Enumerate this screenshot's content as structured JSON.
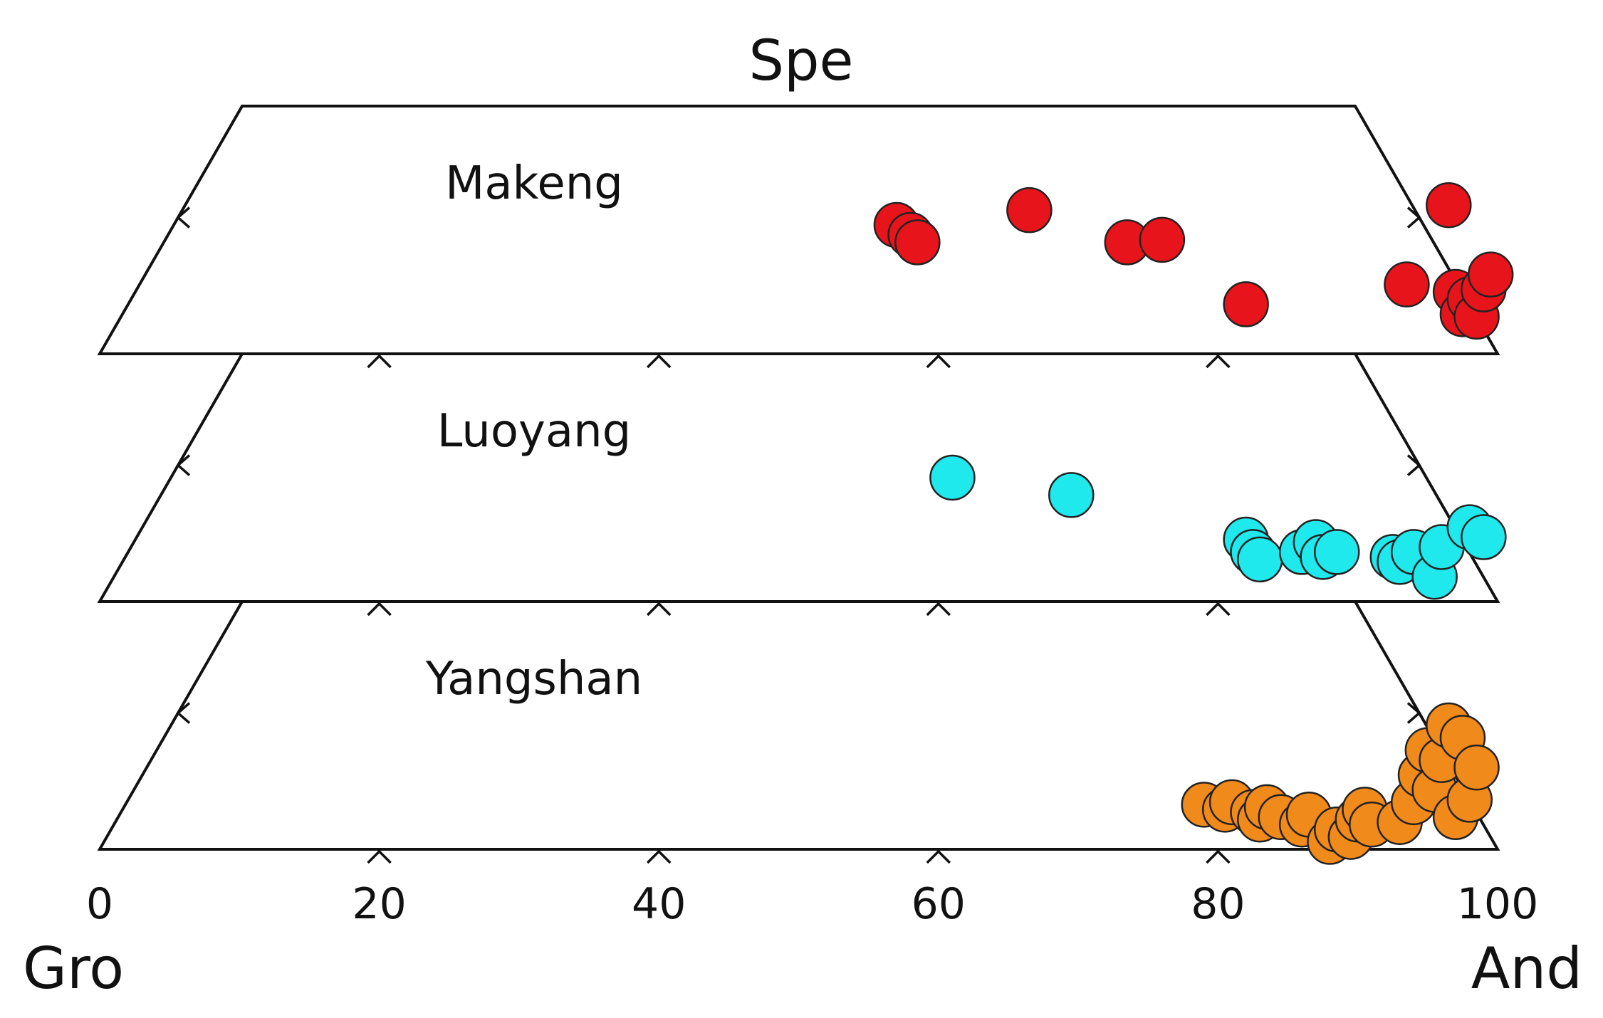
{
  "chart_data": {
    "type": "scatter",
    "apex_label": "Spe",
    "left_end_label": "Gro",
    "right_end_label": "And",
    "x_ticks": [
      "0",
      "20",
      "40",
      "60",
      "80",
      "100"
    ],
    "xlim": [
      0,
      100
    ],
    "panels": [
      {
        "name": "Makeng",
        "color": "#e8141b",
        "points": [
          {
            "and": 57,
            "spe": 5.2
          },
          {
            "and": 58,
            "spe": 4.8
          },
          {
            "and": 58.5,
            "spe": 4.5
          },
          {
            "and": 66.5,
            "spe": 5.8
          },
          {
            "and": 73.5,
            "spe": 4.5
          },
          {
            "and": 76,
            "spe": 4.6
          },
          {
            "and": 82,
            "spe": 2.0
          },
          {
            "and": 93.5,
            "spe": 2.8
          },
          {
            "and": 96.5,
            "spe": 6.0
          },
          {
            "and": 97,
            "spe": 2.5
          },
          {
            "and": 97.5,
            "spe": 1.6
          },
          {
            "and": 98,
            "spe": 2.2
          },
          {
            "and": 98.5,
            "spe": 1.5
          },
          {
            "and": 99,
            "spe": 2.6
          },
          {
            "and": 99.5,
            "spe": 3.2
          }
        ]
      },
      {
        "name": "Luoyang",
        "color": "#1fe9ec",
        "points": [
          {
            "and": 61,
            "spe": 5.0
          },
          {
            "and": 69.5,
            "spe": 4.3
          },
          {
            "and": 82,
            "spe": 2.5
          },
          {
            "and": 82.5,
            "spe": 2.0
          },
          {
            "and": 83,
            "spe": 1.7
          },
          {
            "and": 86,
            "spe": 2.0
          },
          {
            "and": 87,
            "spe": 2.4
          },
          {
            "and": 87.5,
            "spe": 1.8
          },
          {
            "and": 88.5,
            "spe": 2.0
          },
          {
            "and": 92.5,
            "spe": 1.8
          },
          {
            "and": 93,
            "spe": 1.6
          },
          {
            "and": 94,
            "spe": 2.0
          },
          {
            "and": 95.5,
            "spe": 1.0
          },
          {
            "and": 96,
            "spe": 2.2
          },
          {
            "and": 98,
            "spe": 3.0
          },
          {
            "and": 99,
            "spe": 2.6
          }
        ]
      },
      {
        "name": "Yangshan",
        "color": "#f08a1a",
        "points": [
          {
            "and": 79,
            "spe": 1.8
          },
          {
            "and": 80.5,
            "spe": 1.6
          },
          {
            "and": 81,
            "spe": 1.9
          },
          {
            "and": 82.5,
            "spe": 1.5
          },
          {
            "and": 83,
            "spe": 1.2
          },
          {
            "and": 83.5,
            "spe": 1.7
          },
          {
            "and": 84.5,
            "spe": 1.3
          },
          {
            "and": 86,
            "spe": 1.0
          },
          {
            "and": 86.5,
            "spe": 1.4
          },
          {
            "and": 88,
            "spe": 0.3
          },
          {
            "and": 88.5,
            "spe": 0.8
          },
          {
            "and": 89.5,
            "spe": 0.5
          },
          {
            "and": 90,
            "spe": 1.2
          },
          {
            "and": 90.5,
            "spe": 1.6
          },
          {
            "and": 91,
            "spe": 1.0
          },
          {
            "and": 93,
            "spe": 1.1
          },
          {
            "and": 94,
            "spe": 1.9
          },
          {
            "and": 94.5,
            "spe": 3.0
          },
          {
            "and": 95,
            "spe": 4.0
          },
          {
            "and": 95.5,
            "spe": 2.4
          },
          {
            "and": 96,
            "spe": 3.6
          },
          {
            "and": 96.5,
            "spe": 5.0
          },
          {
            "and": 97,
            "spe": 1.3
          },
          {
            "and": 97.5,
            "spe": 4.5
          },
          {
            "and": 98,
            "spe": 2.0
          },
          {
            "and": 98.5,
            "spe": 3.3
          }
        ]
      }
    ]
  }
}
